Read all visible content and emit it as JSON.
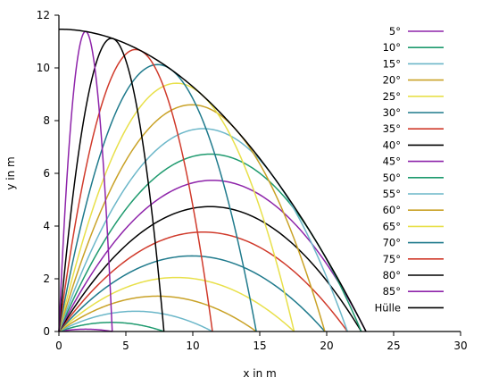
{
  "chart_data": {
    "type": "line",
    "title": "",
    "xlabel": "x in m",
    "ylabel": "y in m",
    "xlim": [
      0,
      30
    ],
    "ylim": [
      0,
      12
    ],
    "xticks": [
      "0",
      "5",
      "10",
      "15",
      "20",
      "25",
      "30"
    ],
    "yticks": [
      "0",
      "2",
      "4",
      "6",
      "8",
      "10",
      "12"
    ],
    "grid": false,
    "legend_position": "top-right",
    "initial_speed_m_s": 15,
    "g_m_s2": 9.81,
    "series": [
      {
        "name": "5°",
        "angle_deg": 5,
        "color": "#8e24aa"
      },
      {
        "name": "10°",
        "angle_deg": 10,
        "color": "#1e9a6e"
      },
      {
        "name": "15°",
        "angle_deg": 15,
        "color": "#6cb7c9"
      },
      {
        "name": "20°",
        "angle_deg": 20,
        "color": "#c9a227"
      },
      {
        "name": "25°",
        "angle_deg": 25,
        "color": "#e8e04a"
      },
      {
        "name": "30°",
        "angle_deg": 30,
        "color": "#1f7a8c"
      },
      {
        "name": "35°",
        "angle_deg": 35,
        "color": "#d03a2b"
      },
      {
        "name": "40°",
        "angle_deg": 40,
        "color": "#000000"
      },
      {
        "name": "45°",
        "angle_deg": 45,
        "color": "#8e24aa"
      },
      {
        "name": "50°",
        "angle_deg": 50,
        "color": "#1e9a6e"
      },
      {
        "name": "55°",
        "angle_deg": 55,
        "color": "#6cb7c9"
      },
      {
        "name": "60°",
        "angle_deg": 60,
        "color": "#c9a227"
      },
      {
        "name": "65°",
        "angle_deg": 65,
        "color": "#e8e04a"
      },
      {
        "name": "70°",
        "angle_deg": 70,
        "color": "#1f7a8c"
      },
      {
        "name": "75°",
        "angle_deg": 75,
        "color": "#d03a2b"
      },
      {
        "name": "80°",
        "angle_deg": 80,
        "color": "#000000"
      },
      {
        "name": "85°",
        "angle_deg": 85,
        "color": "#8e24aa"
      },
      {
        "name": "Hülle",
        "envelope": true,
        "color": "#000000"
      }
    ]
  }
}
